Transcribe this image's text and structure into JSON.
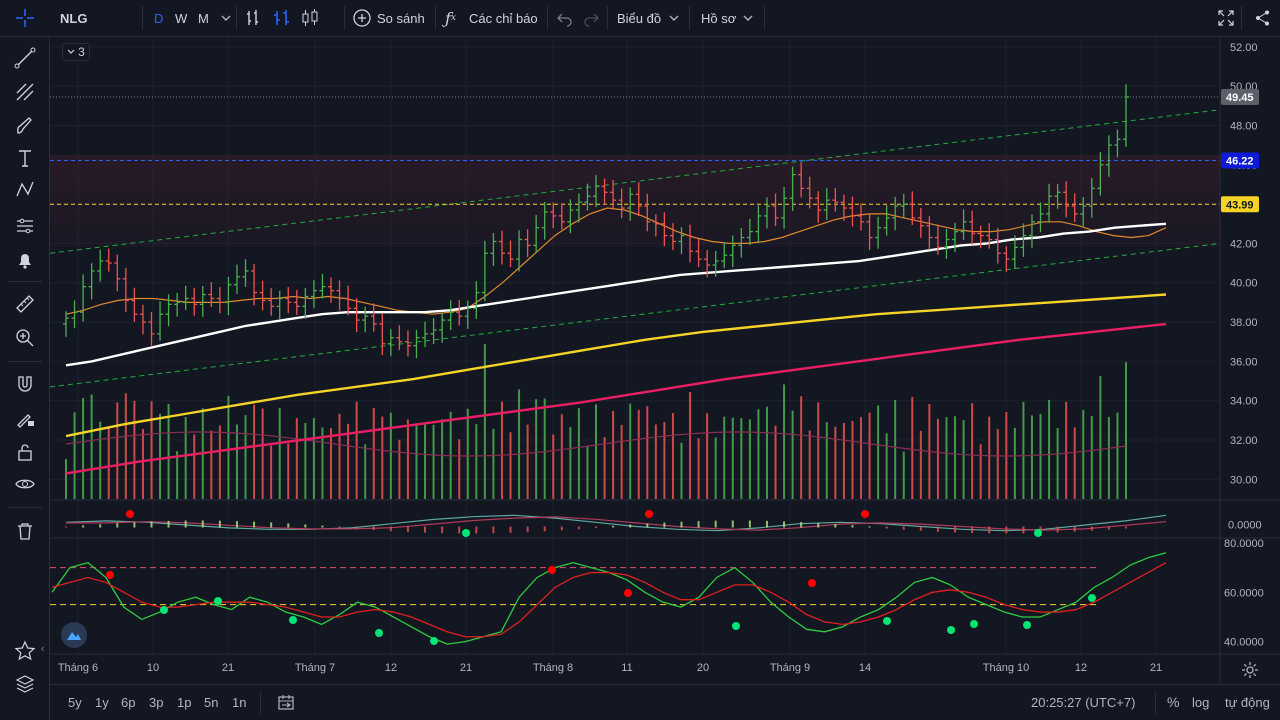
{
  "toolbar": {
    "symbol": "NLG",
    "intervals": [
      "D",
      "W",
      "M"
    ],
    "compare_label": "So sánh",
    "indicators_label": "Các chỉ báo",
    "chart_menu_label": "Biểu đồ",
    "profile_label": "Hồ sơ",
    "compare_icon": "plus-circle-icon",
    "indicators_icon": "fx-icon"
  },
  "legend_badge": "3",
  "bottom": {
    "ranges": [
      "5y",
      "1y",
      "6p",
      "3p",
      "1p",
      "5n",
      "1n"
    ],
    "clock": "20:25:27 (UTC+7)",
    "percent_label": "%",
    "log_label": "log",
    "auto_label": "tự động"
  },
  "colors": {
    "background": "#131722",
    "up": "#26a69a",
    "up_bar": "#4caf50",
    "down_bar": "#ef5350",
    "ma_white": "#ffffff",
    "ma_orange": "#e08a2c",
    "ma_yellow": "#f5d327",
    "ma_pink": "#e91e63",
    "channel": "#1fad3c",
    "accent": "#2962ff"
  },
  "chart_data": {
    "type": "bar",
    "symbol": "NLG",
    "price_axis": {
      "ticks": [
        "52.00",
        "50.00",
        "48.00",
        "46.00",
        "44.00",
        "42.00",
        "40.00",
        "38.00",
        "36.00",
        "34.00",
        "32.00",
        "30.00"
      ],
      "ylim": [
        29,
        52.5
      ]
    },
    "price_markers": [
      {
        "value": 49.45,
        "label": "49.45",
        "style": "last-price"
      },
      {
        "value": 46.22,
        "label": "46.22",
        "style": "blue-line"
      },
      {
        "value": 43.99,
        "label": "43.99",
        "style": "yellow-line"
      }
    ],
    "x_axis_labels": [
      "Tháng 6",
      "10",
      "21",
      "Tháng 7",
      "12",
      "21",
      "Tháng 8",
      "11",
      "20",
      "Tháng 9",
      "14",
      "Tháng 10",
      "12",
      "21"
    ],
    "close": [
      38.2,
      38.5,
      39.8,
      40.6,
      41.1,
      41.0,
      40.2,
      39.1,
      38.4,
      38.0,
      37.4,
      38.4,
      38.9,
      39.0,
      39.2,
      38.9,
      39.4,
      39.2,
      39.0,
      39.9,
      40.3,
      40.6,
      39.5,
      39.1,
      38.8,
      39.2,
      39.0,
      38.8,
      39.3,
      39.6,
      39.8,
      39.6,
      39.2,
      38.7,
      38.1,
      38.3,
      37.9,
      36.9,
      37.2,
      37.0,
      36.8,
      37.2,
      37.4,
      37.6,
      38.1,
      38.5,
      38.3,
      38.7,
      39.5,
      41.5,
      42.1,
      41.5,
      41.2,
      42.2,
      41.9,
      42.8,
      43.6,
      43.4,
      43.1,
      43.7,
      44.1,
      44.4,
      44.9,
      44.6,
      44.2,
      43.8,
      44.5,
      43.9,
      43.1,
      43.0,
      42.4,
      42.1,
      42.4,
      41.6,
      41.2,
      40.9,
      41.1,
      41.4,
      41.9,
      42.3,
      42.6,
      43.4,
      43.9,
      43.3,
      44.3,
      45.5,
      44.8,
      44.3,
      43.7,
      44.2,
      44.1,
      43.8,
      43.4,
      43.1,
      42.3,
      42.8,
      43.3,
      43.9,
      44.0,
      43.3,
      42.9,
      42.3,
      41.8,
      42.2,
      42.6,
      43.1,
      42.5,
      42.4,
      42.2,
      41.5,
      41.2,
      41.8,
      42.4,
      43.1,
      43.5,
      44.4,
      44.6,
      43.9,
      43.5,
      43.9,
      44.8,
      46.0,
      47.0,
      47.3,
      49.45
    ],
    "ma_series": [
      {
        "color": "#e08a2c",
        "values": [
          38.4,
          38.6,
          38.9,
          39.1,
          39.2,
          39.2,
          39.1,
          39.0,
          39.0,
          39.0,
          39.1,
          39.2,
          39.2,
          39.3,
          39.2,
          39.3,
          39.2,
          39.0,
          38.8,
          38.6,
          38.5,
          38.4,
          38.5,
          38.7,
          39.3,
          40.0,
          40.8,
          41.6,
          42.4,
          43.0,
          43.5,
          43.8,
          43.7,
          43.4,
          43.0,
          42.6,
          42.3,
          42.1,
          42.0,
          42.0,
          42.1,
          42.3,
          42.6,
          42.9,
          43.2,
          43.4,
          43.5,
          43.5,
          43.3,
          43.1,
          42.9,
          42.7,
          42.6,
          42.6,
          42.7,
          42.9,
          43.1,
          43.1,
          42.9,
          42.6,
          42.4,
          42.3,
          42.4,
          42.8
        ]
      },
      {
        "color": "#ffffff",
        "values": [
          35.8,
          36.0,
          36.3,
          36.6,
          36.9,
          37.2,
          37.5,
          37.8,
          38.0,
          38.2,
          38.4,
          38.5,
          38.5,
          38.5,
          38.5,
          38.6,
          38.8,
          39.0,
          39.2,
          39.4,
          39.6,
          39.8,
          40.0,
          40.2,
          40.4,
          40.5,
          40.6,
          40.7,
          40.8,
          40.9,
          41.0,
          41.1,
          41.3,
          41.5,
          41.7,
          41.9,
          42.0,
          42.2,
          42.3,
          42.5,
          42.6,
          42.8,
          42.9,
          43.0
        ]
      },
      {
        "color": "#f5d327",
        "values": [
          32.2,
          32.8,
          33.3,
          33.8,
          34.3,
          34.7,
          35.1,
          35.6,
          36.1,
          36.6,
          37.1,
          37.5,
          37.8,
          38.1,
          38.4,
          38.6,
          38.8,
          39.0,
          39.2,
          39.4
        ]
      },
      {
        "color": "#e91e63",
        "values": [
          30.3,
          30.9,
          31.4,
          31.9,
          32.4,
          32.9,
          33.4,
          33.9,
          34.5,
          35.1,
          35.6,
          36.1,
          36.6,
          37.1,
          37.5,
          37.9
        ]
      }
    ],
    "channel": {
      "upper": [
        41.5,
        48.8
      ],
      "lower": [
        34.7,
        42.0
      ]
    },
    "volume_axis": "overlay",
    "macd_axis": {
      "ticks": [
        "0.0000"
      ]
    },
    "stoch_axis": {
      "ticks": [
        "80.0000",
        "60.0000",
        "40.0000"
      ],
      "ylim": [
        35,
        82
      ],
      "levels": [
        70,
        55
      ]
    },
    "stoch_k": [
      60,
      70,
      72,
      66,
      54,
      49,
      52,
      56,
      58,
      55,
      53,
      58,
      56,
      52,
      50,
      47,
      51,
      56,
      54,
      50,
      46,
      42,
      39,
      40,
      42,
      44,
      58,
      66,
      70,
      72,
      70,
      68,
      65,
      60,
      56,
      54,
      58,
      66,
      70,
      64,
      56,
      50,
      45,
      44,
      46,
      50,
      53,
      58,
      64,
      66,
      63,
      58,
      55,
      52,
      50,
      50,
      53,
      56,
      62,
      66,
      71,
      74,
      76
    ],
    "stoch_d": [
      62,
      64,
      66,
      64,
      60,
      56,
      54,
      54,
      55,
      56,
      56,
      56,
      55,
      54,
      52,
      50,
      50,
      52,
      53,
      52,
      50,
      47,
      44,
      42,
      42,
      43,
      48,
      55,
      62,
      66,
      68,
      68,
      67,
      64,
      60,
      57,
      57,
      60,
      63,
      63,
      60,
      56,
      51,
      48,
      47,
      48,
      50,
      53,
      57,
      60,
      61,
      60,
      58,
      55,
      53,
      52,
      52,
      53,
      56,
      60,
      64,
      68,
      72
    ],
    "macd": [
      0.3,
      0.4,
      0.3,
      0.1,
      -0.1,
      -0.2,
      -0.2,
      -0.1,
      0.2,
      0.5,
      0.7,
      0.8,
      0.6,
      0.3,
      0.0,
      -0.2,
      -0.3,
      -0.1,
      0.2,
      0.3,
      0.2,
      0.0,
      -0.2,
      -0.3,
      -0.2,
      0.1,
      0.4,
      0.8
    ]
  }
}
